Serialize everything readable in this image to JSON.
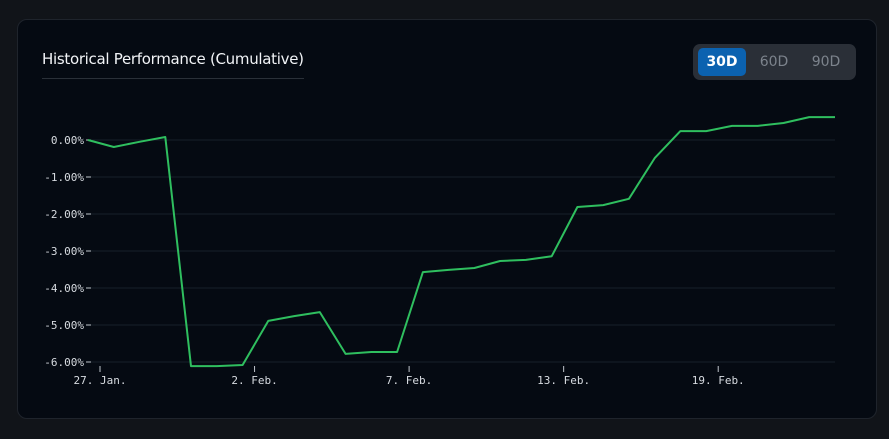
{
  "chart_data": {
    "type": "line",
    "title": "Historical Performance (Cumulative)",
    "categories": [
      "27. Jan.",
      null,
      null,
      null,
      null,
      null,
      "2. Feb.",
      null,
      null,
      null,
      null,
      null,
      "7. Feb.",
      null,
      null,
      null,
      null,
      null,
      "13. Feb.",
      null,
      null,
      null,
      null,
      null,
      "19. Feb.",
      null,
      null,
      null,
      null,
      null
    ],
    "series": [
      {
        "name": "Cumulative",
        "color": "#2fbf5f",
        "values": [
          0.0,
          -0.19,
          -0.05,
          0.08,
          -6.11,
          -6.11,
          -6.08,
          -4.89,
          -4.76,
          -4.65,
          -5.78,
          -5.73,
          -5.73,
          -3.57,
          -3.51,
          -3.46,
          -3.27,
          -3.24,
          -3.14,
          -1.81,
          -1.76,
          -1.59,
          -0.49,
          0.24,
          0.24,
          0.38,
          0.38,
          0.46,
          0.62,
          0.62
        ]
      }
    ],
    "ylim": [
      -6.1,
      0.6
    ],
    "yticks": [
      {
        "value": 0,
        "label": "0.00%"
      },
      {
        "value": -1,
        "label": "-1.00%"
      },
      {
        "value": -2,
        "label": "-2.00%"
      },
      {
        "value": -3,
        "label": "-3.00%"
      },
      {
        "value": -4,
        "label": "-4.00%"
      },
      {
        "value": -5,
        "label": "-5.00%"
      },
      {
        "value": -6,
        "label": "-6.00%"
      }
    ],
    "grid": true
  },
  "range_buttons": {
    "options": [
      "30D",
      "60D",
      "90D"
    ],
    "active": 0
  }
}
